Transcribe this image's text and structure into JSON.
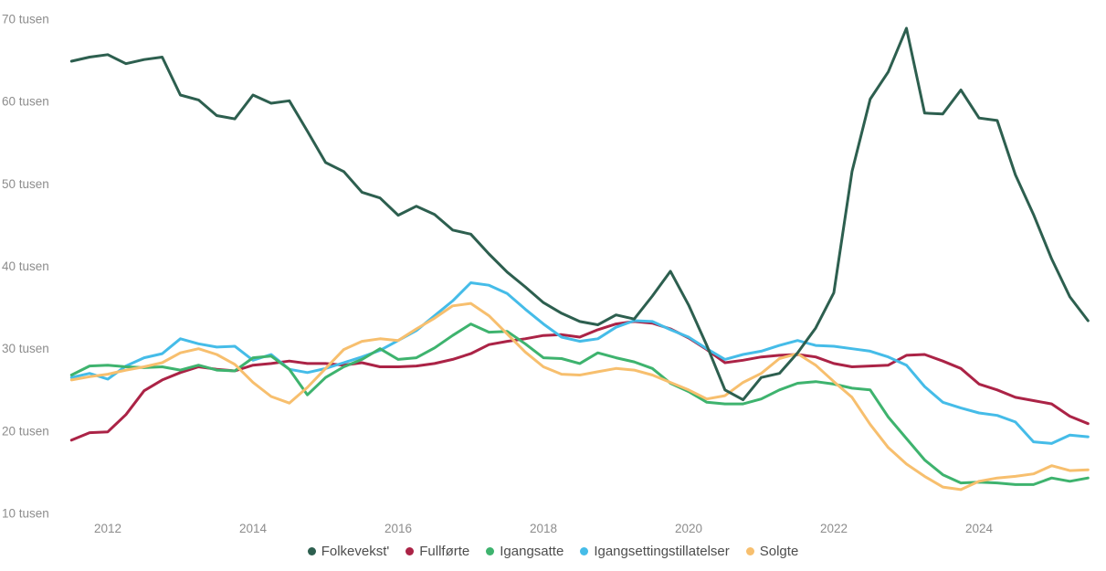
{
  "chart": {
    "y_axis": {
      "ticks": [
        {
          "label": "70 tusen",
          "value": 70
        },
        {
          "label": "60 tusen",
          "value": 60
        },
        {
          "label": "50 tusen",
          "value": 50
        },
        {
          "label": "40 tusen",
          "value": 40
        },
        {
          "label": "30 tusen",
          "value": 30
        },
        {
          "label": "20 tusen",
          "value": 20
        },
        {
          "label": "10 tusen",
          "value": 10
        }
      ]
    },
    "x_axis": {
      "ticks": [
        {
          "label": "2012",
          "value": 2012
        },
        {
          "label": "2014",
          "value": 2014
        },
        {
          "label": "2016",
          "value": 2016
        },
        {
          "label": "2018",
          "value": 2018
        },
        {
          "label": "2020",
          "value": 2020
        },
        {
          "label": "2022",
          "value": 2022
        },
        {
          "label": "2024",
          "value": 2024
        }
      ]
    },
    "text_color": "#8d8d8d",
    "legend_text_color": "#4d4d4d"
  },
  "chart_data": {
    "type": "line",
    "title": "",
    "xlabel": "",
    "ylabel": "tusen",
    "ylim": [
      10,
      70
    ],
    "xlim": [
      2011.5,
      2025.5
    ],
    "grid": false,
    "legend_position": "bottom",
    "x": [
      2011.5,
      2011.75,
      2012,
      2012.25,
      2012.5,
      2012.75,
      2013,
      2013.25,
      2013.5,
      2013.75,
      2014,
      2014.25,
      2014.5,
      2014.75,
      2015,
      2015.25,
      2015.5,
      2015.75,
      2016,
      2016.25,
      2016.5,
      2016.75,
      2017,
      2017.25,
      2017.5,
      2017.75,
      2018,
      2018.25,
      2018.5,
      2018.75,
      2019,
      2019.25,
      2019.5,
      2019.75,
      2020,
      2020.25,
      2020.5,
      2020.75,
      2021,
      2021.25,
      2021.5,
      2021.75,
      2022,
      2022.25,
      2022.5,
      2022.75,
      2023,
      2023.25,
      2023.5,
      2023.75,
      2024,
      2024.25,
      2024.5,
      2024.75,
      2025,
      2025.25,
      2025.5
    ],
    "series": [
      {
        "name": "Folkevekst'",
        "slug": "folkevekst",
        "color": "#2d5f4f",
        "values": [
          64.9,
          65.4,
          65.7,
          64.6,
          65.1,
          65.4,
          60.8,
          60.2,
          58.3,
          57.9,
          60.8,
          59.8,
          60.1,
          56.4,
          52.6,
          51.5,
          49.0,
          48.3,
          46.2,
          47.3,
          46.3,
          44.4,
          43.9,
          41.5,
          39.3,
          37.5,
          35.6,
          34.3,
          33.3,
          32.9,
          34.1,
          33.6,
          36.4,
          39.4,
          35.3,
          30.4,
          25.0,
          23.8,
          26.5,
          27.0,
          29.5,
          32.5,
          36.8,
          51.5,
          60.3,
          63.6,
          68.9,
          58.6,
          58.5,
          61.4,
          58.0,
          57.7,
          51.1,
          46.3,
          40.9,
          36.3,
          33.4
        ]
      },
      {
        "name": "Fullførte",
        "slug": "fullforte",
        "color": "#ab2346",
        "values": [
          18.9,
          19.8,
          19.9,
          22.0,
          24.9,
          26.2,
          27.1,
          27.8,
          27.5,
          27.3,
          28.0,
          28.2,
          28.5,
          28.2,
          28.2,
          28.0,
          28.3,
          27.8,
          27.8,
          27.9,
          28.2,
          28.7,
          29.4,
          30.5,
          30.9,
          31.2,
          31.6,
          31.7,
          31.4,
          32.3,
          33.0,
          33.3,
          33.1,
          32.4,
          31.3,
          29.9,
          28.3,
          28.6,
          29.0,
          29.2,
          29.3,
          29.0,
          28.2,
          27.8,
          27.9,
          28.0,
          29.2,
          29.3,
          28.5,
          27.6,
          25.7,
          25.0,
          24.1,
          23.7,
          23.3,
          21.8,
          20.9
        ]
      },
      {
        "name": "Igangsatte",
        "slug": "igangsatte",
        "color": "#3eb36e",
        "values": [
          26.8,
          27.9,
          28.0,
          27.8,
          27.7,
          27.8,
          27.4,
          28.0,
          27.4,
          27.3,
          28.9,
          29.1,
          27.5,
          24.4,
          26.5,
          27.8,
          28.7,
          30.0,
          28.7,
          28.9,
          30.1,
          31.6,
          33.0,
          32.0,
          32.1,
          30.6,
          28.9,
          28.8,
          28.2,
          29.5,
          28.9,
          28.4,
          27.6,
          25.8,
          24.8,
          23.5,
          23.3,
          23.3,
          23.9,
          25.0,
          25.8,
          26.0,
          25.7,
          25.2,
          25.0,
          21.7,
          19.1,
          16.5,
          14.7,
          13.7,
          13.8,
          13.7,
          13.5,
          13.5,
          14.3,
          13.9,
          14.3
        ]
      },
      {
        "name": "Igangsettingstillatelser",
        "slug": "igangsettingstillatelser",
        "color": "#45bce8",
        "values": [
          26.5,
          27.0,
          26.3,
          27.9,
          28.9,
          29.4,
          31.2,
          30.6,
          30.2,
          30.3,
          28.6,
          29.3,
          27.5,
          27.1,
          27.6,
          28.3,
          29.0,
          29.8,
          31.0,
          32.2,
          34.0,
          35.8,
          38.0,
          37.7,
          36.7,
          34.8,
          33.0,
          31.4,
          30.9,
          31.2,
          32.6,
          33.4,
          33.3,
          32.3,
          31.4,
          30.0,
          28.7,
          29.3,
          29.7,
          30.4,
          31.0,
          30.4,
          30.3,
          30.0,
          29.7,
          29.0,
          28.0,
          25.4,
          23.5,
          22.8,
          22.2,
          21.9,
          21.1,
          18.7,
          18.5,
          19.5,
          19.3
        ]
      },
      {
        "name": "Solgte",
        "slug": "solgte",
        "color": "#f7bf6e",
        "values": [
          26.2,
          26.6,
          26.9,
          27.4,
          27.8,
          28.3,
          29.5,
          30.0,
          29.3,
          28.1,
          25.9,
          24.2,
          23.4,
          25.3,
          27.6,
          29.9,
          30.9,
          31.2,
          31.0,
          32.4,
          33.7,
          35.2,
          35.5,
          34.0,
          31.8,
          29.6,
          27.8,
          26.9,
          26.8,
          27.2,
          27.6,
          27.4,
          26.8,
          25.9,
          25.0,
          23.9,
          24.3,
          25.9,
          27.0,
          28.8,
          29.4,
          28.0,
          26.0,
          24.1,
          20.8,
          18.0,
          16.0,
          14.5,
          13.2,
          12.9,
          13.9,
          14.3,
          14.5,
          14.8,
          15.8,
          15.2,
          15.3
        ]
      }
    ]
  }
}
